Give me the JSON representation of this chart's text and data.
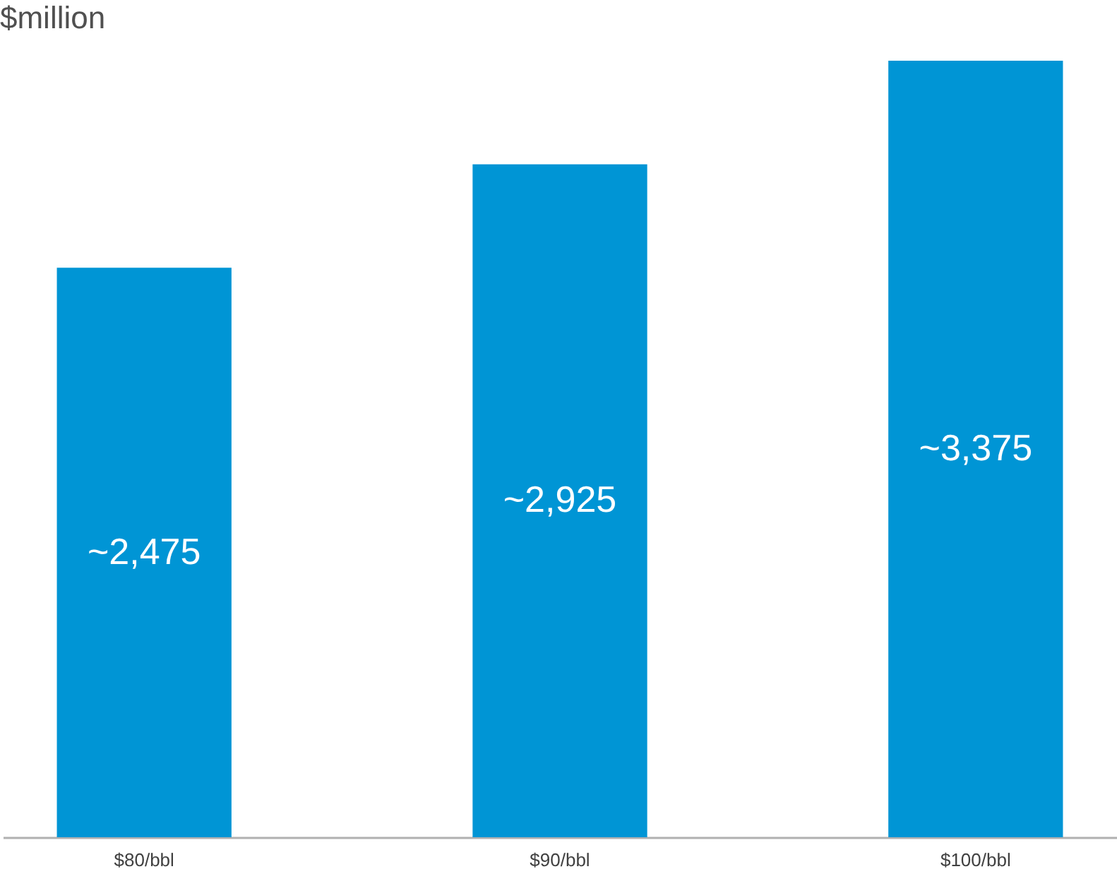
{
  "chart_data": {
    "type": "bar",
    "ylabel": "$million",
    "categories": [
      "$80/bbl",
      "$90/bbl",
      "$100/bbl"
    ],
    "values": [
      2475,
      2925,
      3375
    ],
    "value_labels": [
      "~2,475",
      "~2,925",
      "~3,375"
    ],
    "color": "#0095d5"
  }
}
